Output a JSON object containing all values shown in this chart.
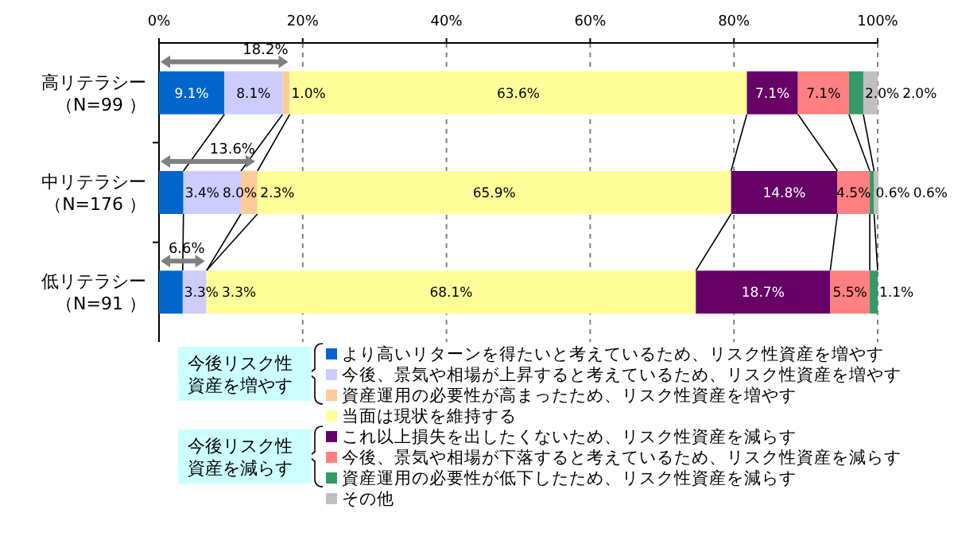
{
  "chart_data": {
    "type": "bar",
    "orientation": "horizontal",
    "stacked": true,
    "grid": "x",
    "legend": "bottom",
    "categories": [
      "高リテラシー（N=99 ）",
      "中リテラシー（N=176 ）",
      "低リテラシー（N=91 ）"
    ],
    "xlim": [
      0,
      100
    ],
    "xticks": [
      {
        "value": 0,
        "label": "0%"
      },
      {
        "value": 20,
        "label": "20%"
      },
      {
        "value": 40,
        "label": "40%"
      },
      {
        "value": 60,
        "label": "60%"
      },
      {
        "value": 80,
        "label": "80%"
      },
      {
        "value": 100,
        "label": "100%"
      }
    ],
    "series": [
      {
        "name": "より高いリターンを得たいと考えているため、リスク性資産を増やす",
        "color": "#0066cc",
        "values": [
          9.1,
          3.4,
          3.3
        ],
        "value_labels": [
          "9.1%",
          "3.4%",
          "3.3%"
        ]
      },
      {
        "name": "今後、景気や相場が上昇すると考えているため、リスク性資産を増やす",
        "color": "#ccccff",
        "values": [
          8.1,
          8.0,
          3.3
        ],
        "value_labels": [
          "8.1%",
          "8.0%",
          "3.3%"
        ]
      },
      {
        "name": "資産運用の必要性が高まったため、リスク性資産を増やす",
        "color": "#ffcc99",
        "values": [
          1.0,
          2.3,
          null
        ],
        "value_labels": [
          "1.0%",
          "2.3%",
          null
        ]
      },
      {
        "name": "当面は現状を維持する",
        "color": "#ffff99",
        "values": [
          63.6,
          65.9,
          68.1
        ],
        "value_labels": [
          "63.6%",
          "65.9%",
          "68.1%"
        ]
      },
      {
        "name": "これ以上損失を出したくないため、リスク性資産を減らす",
        "color": "#660066",
        "values": [
          7.1,
          14.8,
          18.7
        ],
        "value_labels": [
          "7.1%",
          "14.8%",
          "18.7%"
        ]
      },
      {
        "name": "今後、景気や相場が下落すると考えているため、リスク性資産を減らす",
        "color": "#ff8080",
        "values": [
          7.1,
          4.5,
          5.5
        ],
        "value_labels": [
          "7.1%",
          "4.5%",
          "5.5%"
        ]
      },
      {
        "name": "資産運用の必要性が低下したため、リスク性資産を減らす",
        "color": "#339966",
        "values": [
          2.0,
          0.6,
          1.1
        ],
        "value_labels": [
          "2.0%",
          "0.6%",
          "1.1%"
        ]
      },
      {
        "name": "その他",
        "color": "#c0c0c0",
        "values": [
          2.0,
          0.6,
          null
        ],
        "value_labels": [
          "2.0%",
          "0.6%",
          null
        ]
      }
    ],
    "annotations": [
      {
        "text": "18.2%",
        "x": 18.2,
        "y": "高リテラシー（N=99 ）"
      },
      {
        "text": "13.6%",
        "x": 13.6,
        "y": "中リテラシー（N=176 ）"
      },
      {
        "text": "6.6%",
        "x": 6.6,
        "y": "低リテラシー（N=91 ）"
      },
      "今後リスク性資産を増やす",
      "今後リスク性資産を減らす"
    ]
  }
}
